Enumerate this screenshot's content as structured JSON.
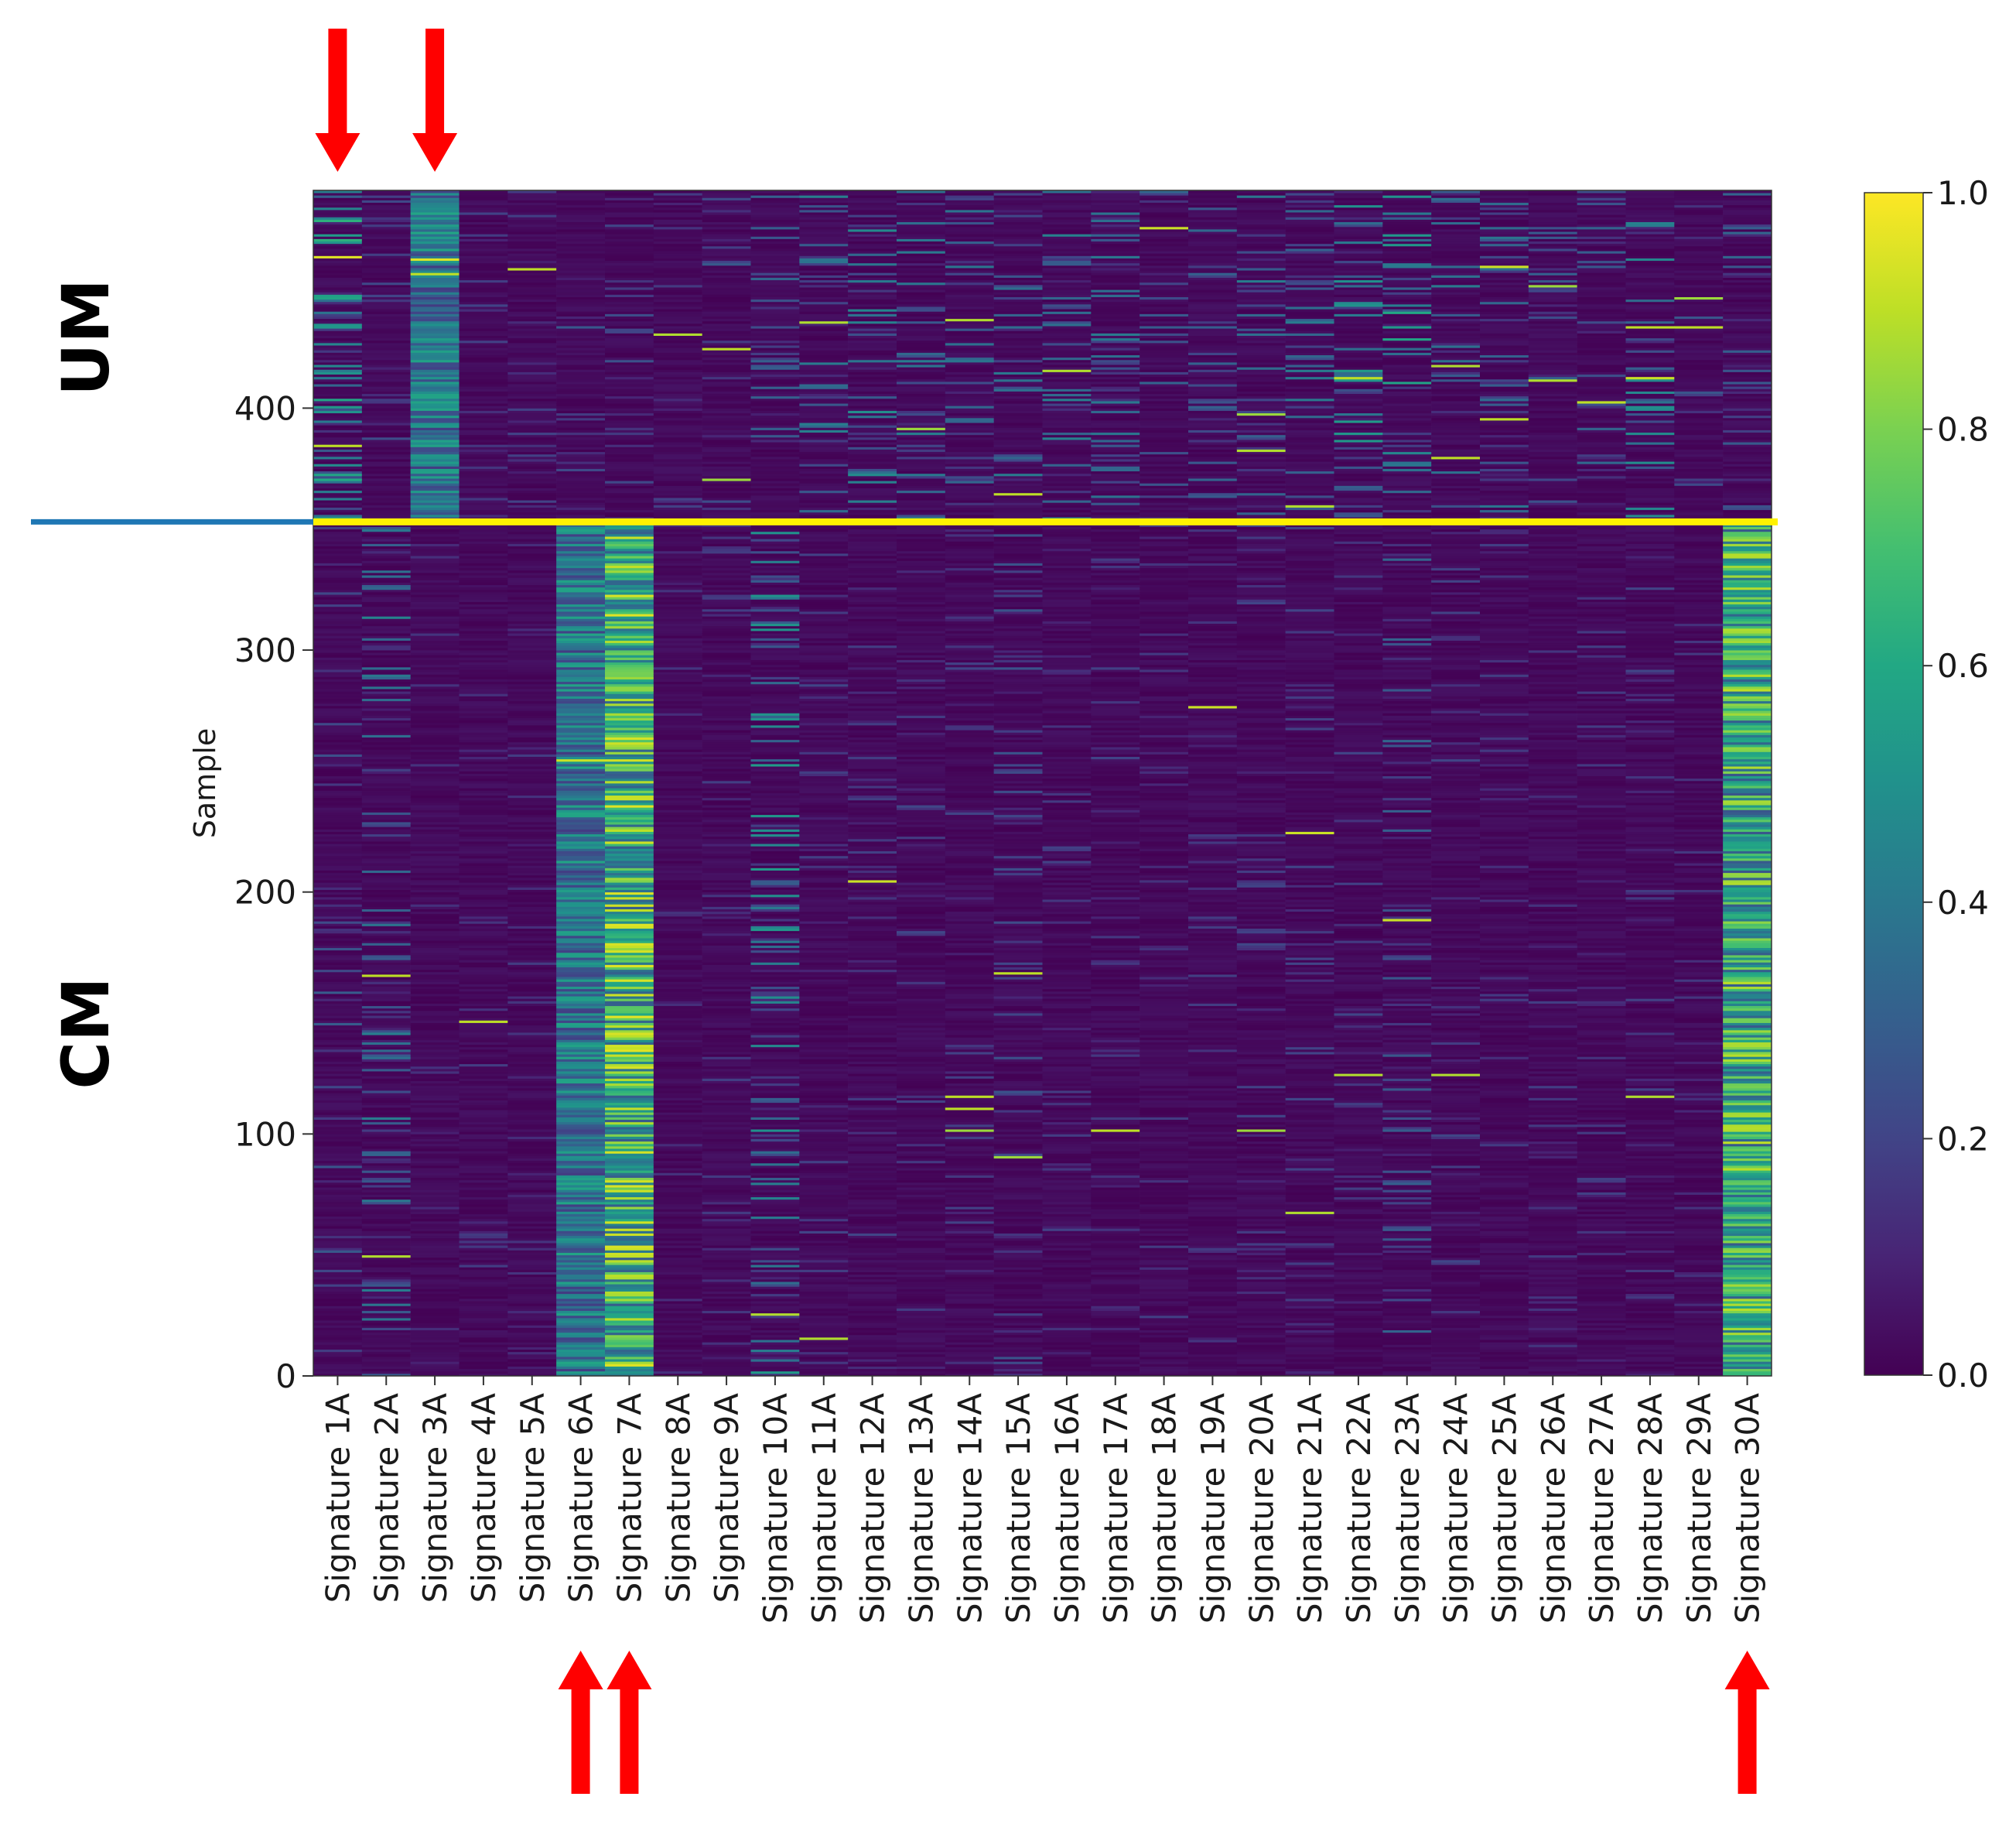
{
  "chart_data": {
    "type": "heatmap",
    "title": "",
    "xlabel": "",
    "ylabel": "Sample",
    "ylim": [
      0,
      490
    ],
    "yticks": [
      "0",
      "100",
      "200",
      "300",
      "400"
    ],
    "n_samples": 490,
    "categories": [
      "Signature 1A",
      "Signature 2A",
      "Signature 3A",
      "Signature 4A",
      "Signature 5A",
      "Signature 6A",
      "Signature 7A",
      "Signature 8A",
      "Signature 9A",
      "Signature 10A",
      "Signature 11A",
      "Signature 12A",
      "Signature 13A",
      "Signature 14A",
      "Signature 15A",
      "Signature 16A",
      "Signature 17A",
      "Signature 18A",
      "Signature 19A",
      "Signature 20A",
      "Signature 21A",
      "Signature 22A",
      "Signature 23A",
      "Signature 24A",
      "Signature 25A",
      "Signature 26A",
      "Signature 27A",
      "Signature 28A",
      "Signature 29A",
      "Signature 30A"
    ],
    "colorbar": {
      "colormap": "viridis",
      "range": [
        0.0,
        1.0
      ],
      "ticks": [
        "0.0",
        "0.2",
        "0.4",
        "0.6",
        "0.8",
        "1.0"
      ]
    },
    "groups": [
      {
        "name": "UM",
        "samples": [
          353,
          490
        ]
      },
      {
        "name": "CM",
        "samples": [
          0,
          353
        ]
      }
    ],
    "group_divider_sample": 353,
    "group_divider_color": "#FFF200",
    "outer_divider_color": "#1F77B4",
    "arrow_color": "#FF0000",
    "arrows_top": [
      "Signature 1A",
      "Signature 3A"
    ],
    "arrows_bottom": [
      "Signature 6A",
      "Signature 7A",
      "Signature 30A"
    ],
    "column_mean_UM": [
      0.22,
      0.06,
      0.38,
      0.05,
      0.05,
      0.08,
      0.07,
      0.05,
      0.08,
      0.1,
      0.14,
      0.16,
      0.14,
      0.12,
      0.13,
      0.14,
      0.13,
      0.1,
      0.1,
      0.15,
      0.13,
      0.18,
      0.2,
      0.13,
      0.12,
      0.1,
      0.11,
      0.16,
      0.08,
      0.1
    ],
    "column_mean_CM": [
      0.08,
      0.14,
      0.03,
      0.04,
      0.04,
      0.38,
      0.62,
      0.03,
      0.04,
      0.18,
      0.05,
      0.05,
      0.05,
      0.05,
      0.07,
      0.05,
      0.05,
      0.04,
      0.04,
      0.05,
      0.05,
      0.05,
      0.1,
      0.05,
      0.04,
      0.04,
      0.05,
      0.05,
      0.04,
      0.58
    ],
    "hotspots": [
      {
        "signature": "Signature 1A",
        "sample": 462,
        "value": 0.95
      },
      {
        "signature": "Signature 1A",
        "sample": 384,
        "value": 0.9
      },
      {
        "signature": "Signature 3A",
        "sample": 461,
        "value": 0.95
      },
      {
        "signature": "Signature 3A",
        "sample": 455,
        "value": 0.9
      },
      {
        "signature": "Signature 5A",
        "sample": 457,
        "value": 0.9
      },
      {
        "signature": "Signature 8A",
        "sample": 430,
        "value": 0.88
      },
      {
        "signature": "Signature 9A",
        "sample": 424,
        "value": 0.9
      },
      {
        "signature": "Signature 9A",
        "sample": 370,
        "value": 0.85
      },
      {
        "signature": "Signature 11A",
        "sample": 435,
        "value": 0.88
      },
      {
        "signature": "Signature 13A",
        "sample": 391,
        "value": 0.85
      },
      {
        "signature": "Signature 14A",
        "sample": 436,
        "value": 0.88
      },
      {
        "signature": "Signature 15A",
        "sample": 364,
        "value": 0.9
      },
      {
        "signature": "Signature 16A",
        "sample": 415,
        "value": 0.88
      },
      {
        "signature": "Signature 18A",
        "sample": 474,
        "value": 0.92
      },
      {
        "signature": "Signature 20A",
        "sample": 397,
        "value": 0.85
      },
      {
        "signature": "Signature 20A",
        "sample": 382,
        "value": 0.88
      },
      {
        "signature": "Signature 21A",
        "sample": 359,
        "value": 0.88
      },
      {
        "signature": "Signature 22A",
        "sample": 412,
        "value": 0.9
      },
      {
        "signature": "Signature 24A",
        "sample": 417,
        "value": 0.88
      },
      {
        "signature": "Signature 24A",
        "sample": 379,
        "value": 0.9
      },
      {
        "signature": "Signature 25A",
        "sample": 458,
        "value": 0.92
      },
      {
        "signature": "Signature 25A",
        "sample": 395,
        "value": 0.9
      },
      {
        "signature": "Signature 26A",
        "sample": 450,
        "value": 0.85
      },
      {
        "signature": "Signature 26A",
        "sample": 411,
        "value": 0.88
      },
      {
        "signature": "Signature 27A",
        "sample": 402,
        "value": 0.9
      },
      {
        "signature": "Signature 28A",
        "sample": 433,
        "value": 0.9
      },
      {
        "signature": "Signature 28A",
        "sample": 412,
        "value": 0.92
      },
      {
        "signature": "Signature 29A",
        "sample": 433,
        "value": 0.9
      },
      {
        "signature": "Signature 29A",
        "sample": 445,
        "value": 0.85
      },
      {
        "signature": "Signature 2A",
        "sample": 165,
        "value": 0.9
      },
      {
        "signature": "Signature 2A",
        "sample": 49,
        "value": 0.88
      },
      {
        "signature": "Signature 4A",
        "sample": 146,
        "value": 0.9
      },
      {
        "signature": "Signature 6A",
        "sample": 254,
        "value": 0.92
      },
      {
        "signature": "Signature 7A",
        "sample": 303,
        "value": 0.88
      },
      {
        "signature": "Signature 7A",
        "sample": 140,
        "value": 0.9
      },
      {
        "signature": "Signature 7A",
        "sample": 34,
        "value": 0.88
      },
      {
        "signature": "Signature 10A",
        "sample": 25,
        "value": 0.88
      },
      {
        "signature": "Signature 11A",
        "sample": 15,
        "value": 0.88
      },
      {
        "signature": "Signature 12A",
        "sample": 204,
        "value": 0.92
      },
      {
        "signature": "Signature 14A",
        "sample": 115,
        "value": 0.9
      },
      {
        "signature": "Signature 14A",
        "sample": 110,
        "value": 0.9
      },
      {
        "signature": "Signature 14A",
        "sample": 101,
        "value": 0.85
      },
      {
        "signature": "Signature 15A",
        "sample": 166,
        "value": 0.9
      },
      {
        "signature": "Signature 15A",
        "sample": 90,
        "value": 0.85
      },
      {
        "signature": "Signature 17A",
        "sample": 101,
        "value": 0.9
      },
      {
        "signature": "Signature 19A",
        "sample": 276,
        "value": 0.92
      },
      {
        "signature": "Signature 20A",
        "sample": 101,
        "value": 0.85
      },
      {
        "signature": "Signature 21A",
        "sample": 224,
        "value": 0.92
      },
      {
        "signature": "Signature 21A",
        "sample": 67,
        "value": 0.88
      },
      {
        "signature": "Signature 22A",
        "sample": 124,
        "value": 0.88
      },
      {
        "signature": "Signature 23A",
        "sample": 188,
        "value": 0.92
      },
      {
        "signature": "Signature 24A",
        "sample": 124,
        "value": 0.88
      },
      {
        "signature": "Signature 28A",
        "sample": 115,
        "value": 0.88
      },
      {
        "signature": "Signature 30A",
        "sample": 96,
        "value": 0.9
      }
    ]
  }
}
